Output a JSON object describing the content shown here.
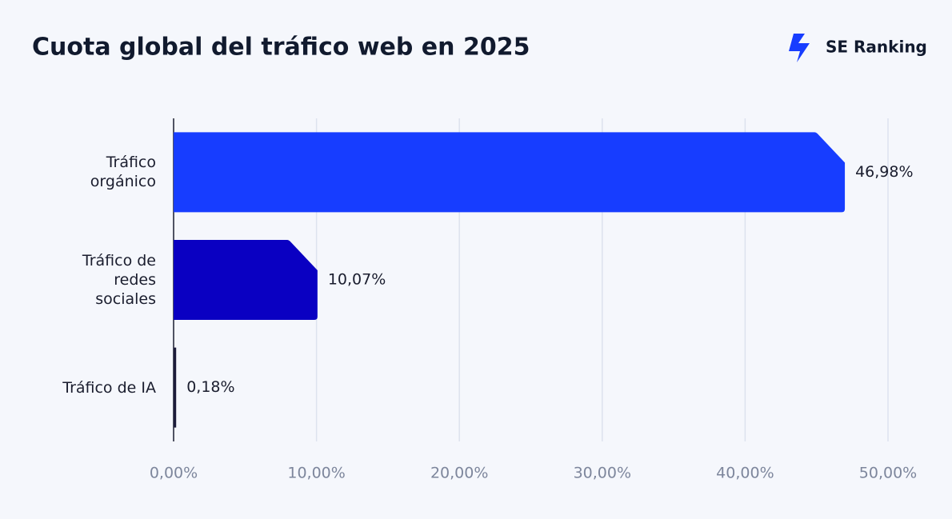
{
  "brand": "SE Ranking",
  "chart_data": {
    "type": "bar",
    "orientation": "horizontal",
    "title": "Cuota global del tráfico web en 2025",
    "categories": [
      "Tráfico orgánico",
      "Tráfico de redes sociales",
      "Tráfico de IA"
    ],
    "values": [
      46.98,
      10.07,
      0.18
    ],
    "value_labels": [
      "46,98%",
      "10,07%",
      "0,18%"
    ],
    "colors": [
      "#173dff",
      "#0a00c2",
      "#1c1c3a"
    ],
    "xlim": [
      0,
      50
    ],
    "xticks": [
      {
        "value": 0,
        "label": "0,00%"
      },
      {
        "value": 10,
        "label": "10,00%"
      },
      {
        "value": 20,
        "label": "20,00%"
      },
      {
        "value": 30,
        "label": "30,00%"
      },
      {
        "value": 40,
        "label": "40,00%"
      },
      {
        "value": 50,
        "label": "50,00%"
      }
    ],
    "grid": true
  }
}
